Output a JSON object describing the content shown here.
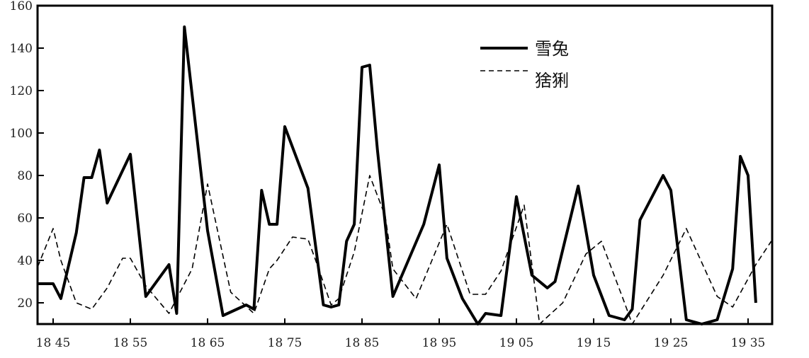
{
  "chart_data": {
    "type": "line",
    "title": "",
    "xlabel": "",
    "ylabel": "",
    "xlim": [
      1843,
      1938
    ],
    "ylim": [
      10,
      160
    ],
    "grid": false,
    "legend_placement": "top-right",
    "x_ticks": [
      1845,
      1855,
      1865,
      1875,
      1885,
      1895,
      1905,
      1915,
      1925,
      1935
    ],
    "x_tick_labels": [
      "18 45",
      "18 55",
      "18 65",
      "18 75",
      "18 85",
      "18 95",
      "19 05",
      "19 15",
      "19 25",
      "19 35"
    ],
    "y_ticks": [
      20,
      40,
      60,
      80,
      100,
      120,
      140,
      160
    ],
    "y_tick_labels": [
      "20",
      "40",
      "60",
      "80",
      "100",
      "120",
      "140",
      "160"
    ],
    "series": [
      {
        "name": "雪兔",
        "style": "solid",
        "color": "#000000",
        "x": [
          1843,
          1845,
          1846,
          1848,
          1849,
          1850,
          1851,
          1852,
          1855,
          1857,
          1860,
          1861,
          1862,
          1865,
          1867,
          1870,
          1871,
          1872,
          1873,
          1874,
          1875,
          1878,
          1880,
          1881,
          1882,
          1883,
          1884,
          1885,
          1886,
          1887,
          1889,
          1891,
          1893,
          1895,
          1896,
          1898,
          1900,
          1901,
          1903,
          1905,
          1907,
          1909,
          1910,
          1913,
          1915,
          1917,
          1919,
          1920,
          1921,
          1924,
          1925,
          1927,
          1929,
          1931,
          1933,
          1934,
          1935,
          1936
        ],
        "y": [
          29,
          29,
          22,
          53,
          79,
          79,
          92,
          67,
          90,
          23,
          38,
          15,
          150,
          54,
          14,
          19,
          17,
          73,
          57,
          57,
          103,
          74,
          19,
          18,
          19,
          49,
          57,
          131,
          132,
          92,
          23,
          40,
          57,
          85,
          41,
          22,
          10,
          15,
          14,
          70,
          33,
          27,
          30,
          75,
          33,
          14,
          12,
          17,
          59,
          80,
          73,
          12,
          10,
          12,
          36,
          89,
          80,
          20
        ]
      },
      {
        "name": "猞猁",
        "style": "dashed",
        "color": "#000000",
        "x": [
          1843,
          1845,
          1846,
          1848,
          1850,
          1852,
          1854,
          1855,
          1857,
          1860,
          1863,
          1865,
          1868,
          1871,
          1873,
          1874,
          1876,
          1878,
          1879,
          1881,
          1882,
          1884,
          1886,
          1888,
          1889,
          1892,
          1896,
          1899,
          1901,
          1903,
          1906,
          1908,
          1911,
          1914,
          1916,
          1919,
          1920,
          1924,
          1927,
          1931,
          1933,
          1936,
          1938
        ],
        "y": [
          37,
          55,
          40,
          20,
          17,
          27,
          41,
          41,
          28,
          15,
          36,
          76,
          25,
          15,
          36,
          40,
          51,
          50,
          40,
          19,
          22,
          44,
          80,
          61,
          36,
          22,
          57,
          24,
          24,
          35,
          66,
          10,
          20,
          43,
          49,
          20,
          10,
          33,
          55,
          23,
          18,
          38,
          49
        ]
      }
    ]
  }
}
